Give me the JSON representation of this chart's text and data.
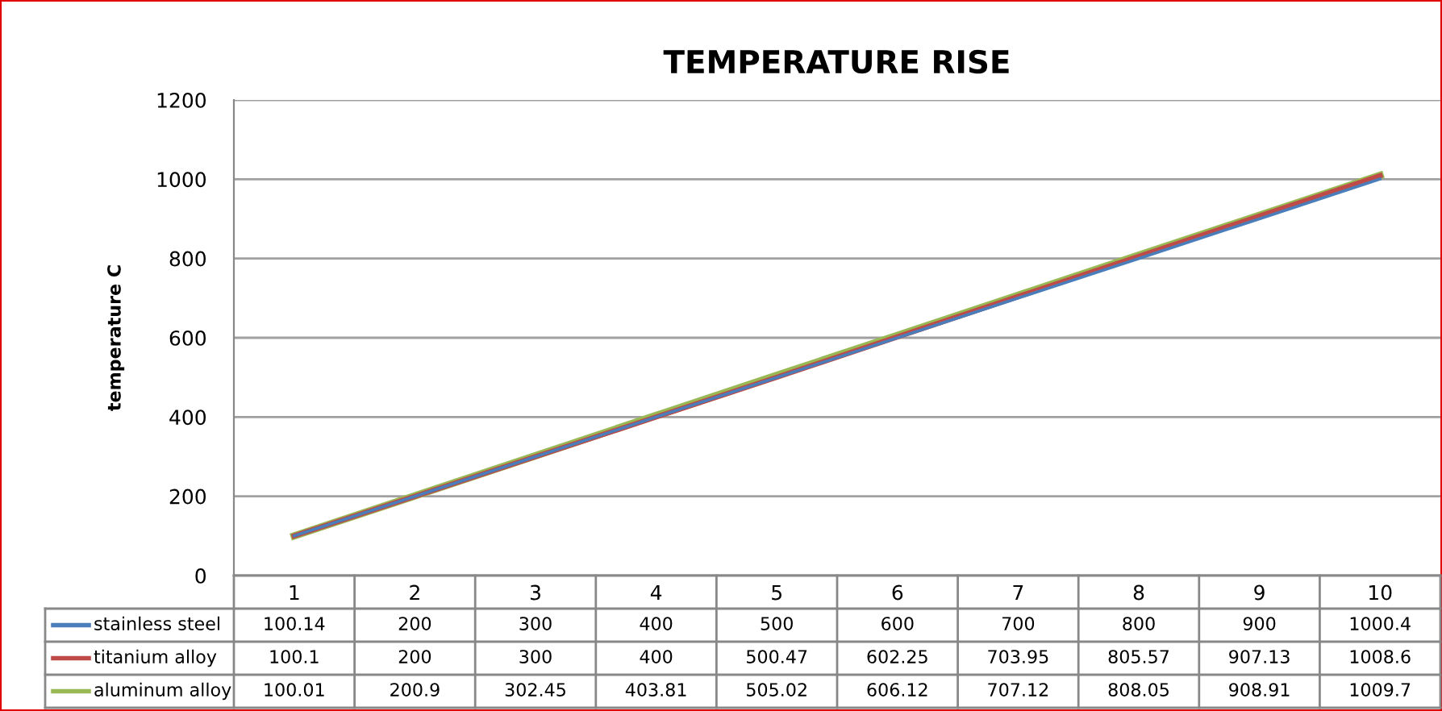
{
  "chart_data": {
    "type": "line",
    "title": "TEMPERATURE RISE",
    "ylabel": "temperature C",
    "categories": [
      "1",
      "2",
      "3",
      "4",
      "5",
      "6",
      "7",
      "8",
      "9",
      "10"
    ],
    "series": [
      {
        "name": "stainless steel",
        "color": "#4a7ebb",
        "values": [
          100.14,
          200,
          300,
          400,
          500,
          600,
          700,
          800,
          900,
          1000.4
        ]
      },
      {
        "name": "titanium alloy",
        "color": "#be4b48",
        "values": [
          100.1,
          200,
          300,
          400,
          500.47,
          602.25,
          703.95,
          805.57,
          907.13,
          1008.6
        ]
      },
      {
        "name": "aluminum alloy",
        "color": "#98b954",
        "values": [
          100.01,
          200.9,
          302.45,
          403.81,
          505.02,
          606.12,
          707.12,
          808.05,
          908.91,
          1009.7
        ]
      }
    ],
    "ylim": [
      0,
      1200
    ],
    "yticks": [
      0,
      200,
      400,
      600,
      800,
      1000,
      1200
    ],
    "grid": "y",
    "data_labels": true,
    "legend": "bottom"
  }
}
